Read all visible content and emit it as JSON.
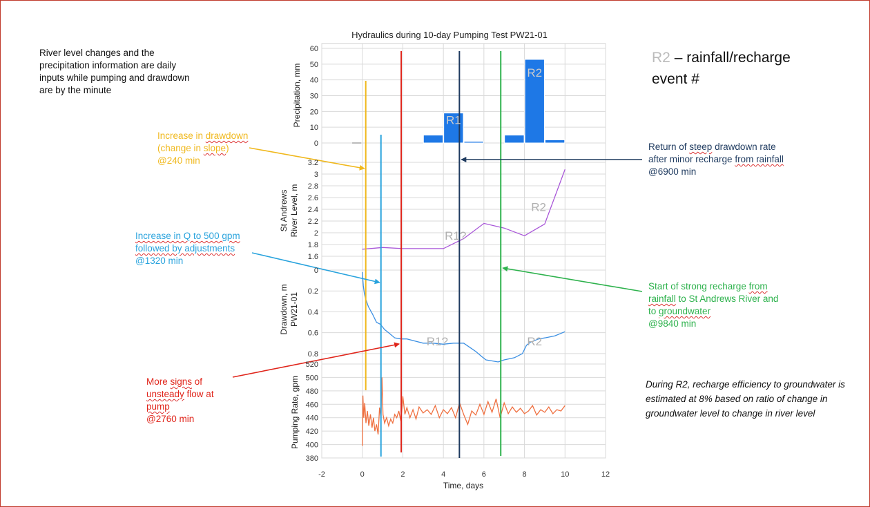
{
  "chart_data": [
    {
      "type": "bar",
      "title": "Hydraulics during 10-day Pumping Test PW21-01",
      "ylabel": "Precipitation, mm",
      "ylim": [
        0,
        60
      ],
      "yticks": [
        "0",
        "10",
        "20",
        "30",
        "40",
        "50",
        "60"
      ],
      "x": [
        4,
        5,
        6,
        8,
        9,
        10
      ],
      "values": [
        5,
        19,
        1,
        5,
        53,
        2
      ],
      "color": "#1e78e6",
      "annotations": [
        "R1",
        "R2"
      ]
    },
    {
      "type": "line",
      "ylabel": "St Andrews\nRiver Level, m",
      "ylim": [
        1.6,
        3.2
      ],
      "yticks": [
        "1.6",
        "1.8",
        "2",
        "2.2",
        "2.4",
        "2.6",
        "2.8",
        "3",
        "3.2"
      ],
      "x": [
        0,
        1,
        2,
        3,
        4,
        5,
        6,
        7,
        8,
        9,
        10
      ],
      "values": [
        1.72,
        1.75,
        1.73,
        1.73,
        1.73,
        1.9,
        2.16,
        2.08,
        1.95,
        2.15,
        3.08
      ],
      "color": "#a855d8",
      "annotations": [
        "R1?",
        "R2"
      ]
    },
    {
      "type": "line",
      "ylabel": "Drawdown, m\nPW21-01",
      "ylim": [
        0,
        0.9
      ],
      "yticks": [
        "0",
        "0.2",
        "0.4",
        "0.6",
        "0.8"
      ],
      "inverted": true,
      "x": [
        0,
        0.05,
        0.1,
        0.17,
        0.3,
        0.5,
        0.7,
        0.9,
        1.1,
        1.3,
        1.6,
        1.9,
        2.2,
        2.6,
        3,
        3.5,
        4,
        4.5,
        5,
        5.3,
        5.6,
        5.9,
        6.1,
        6.4,
        6.7,
        7,
        7.5,
        7.9,
        8.1,
        8.3,
        8.7,
        9,
        9.5,
        10
      ],
      "values": [
        0.02,
        0.15,
        0.22,
        0.28,
        0.35,
        0.42,
        0.5,
        0.52,
        0.57,
        0.6,
        0.65,
        0.66,
        0.66,
        0.68,
        0.7,
        0.7,
        0.71,
        0.7,
        0.7,
        0.74,
        0.78,
        0.83,
        0.86,
        0.87,
        0.88,
        0.86,
        0.84,
        0.8,
        0.72,
        0.69,
        0.66,
        0.65,
        0.63,
        0.59
      ],
      "color": "#3a8fe3",
      "annotations": [
        "R1?",
        "R2"
      ]
    },
    {
      "type": "line",
      "ylabel": "Pumping Rate, gpm",
      "ylim": [
        380,
        520
      ],
      "yticks": [
        "380",
        "400",
        "420",
        "440",
        "460",
        "480",
        "500",
        "520"
      ],
      "xlabel": "Time, days",
      "xlim": [
        -2,
        12
      ],
      "xticks": [
        "-2",
        "0",
        "2",
        "4",
        "6",
        "8",
        "10",
        "12"
      ],
      "x": [
        0,
        0.03,
        0.07,
        0.12,
        0.18,
        0.25,
        0.32,
        0.4,
        0.48,
        0.55,
        0.62,
        0.7,
        0.78,
        0.85,
        0.92,
        0.97,
        1.02,
        1.1,
        1.2,
        1.3,
        1.4,
        1.5,
        1.6,
        1.7,
        1.8,
        1.9,
        2.0,
        2.1,
        2.2,
        2.35,
        2.5,
        2.65,
        2.8,
        3.0,
        3.2,
        3.4,
        3.6,
        3.8,
        4.0,
        4.2,
        4.4,
        4.6,
        4.8,
        5.0,
        5.2,
        5.4,
        5.6,
        5.8,
        6.0,
        6.2,
        6.4,
        6.6,
        6.8,
        7.0,
        7.2,
        7.4,
        7.6,
        7.8,
        8.0,
        8.2,
        8.4,
        8.6,
        8.8,
        9.0,
        9.2,
        9.4,
        9.6,
        9.8,
        10.0
      ],
      "values": [
        398,
        473,
        440,
        462,
        432,
        450,
        428,
        445,
        425,
        440,
        420,
        430,
        415,
        455,
        440,
        500,
        445,
        432,
        440,
        428,
        438,
        432,
        445,
        440,
        450,
        435,
        472,
        445,
        455,
        440,
        452,
        438,
        456,
        447,
        452,
        445,
        458,
        440,
        452,
        446,
        455,
        440,
        462,
        445,
        430,
        450,
        444,
        460,
        445,
        464,
        448,
        468,
        440,
        462,
        446,
        456,
        448,
        454,
        446,
        450,
        458,
        444,
        452,
        448,
        456,
        446,
        452,
        450,
        458
      ],
      "color": "#ef7040"
    }
  ],
  "event_lines": [
    {
      "label": "@240 min",
      "x_days": 0.17,
      "color": "#f0b81c"
    },
    {
      "label": "@1320 min",
      "x_days": 0.92,
      "color": "#29a3dd"
    },
    {
      "label": "@2760 min",
      "x_days": 1.92,
      "color": "#e0251b"
    },
    {
      "label": "@6900 min",
      "x_days": 4.79,
      "color": "#1e3a5f"
    },
    {
      "label": "@9840 min",
      "x_days": 6.83,
      "color": "#2eb24d"
    }
  ],
  "notes": {
    "intro": [
      "River level changes and the",
      "precipitation information are daily",
      "inputs while pumping and drawdown",
      "are by the minute"
    ],
    "yellow": {
      "p1": "Increase in ",
      "w1": "drawdown",
      "p2": "(change in ",
      "w2": "slope",
      "p3": ")",
      "line3": "@240 min",
      "color": "#f0b81c"
    },
    "blue": {
      "w1": "Increase in Q to 500 gpm",
      "w2": "followed by adjustments",
      "line3": "@1320 min",
      "color": "#29a3dd"
    },
    "red": {
      "l1": "More ",
      "w1": "signs",
      "l1b": " of",
      "w2": "unsteady",
      "l2b": " flow at",
      "w3": "pump",
      "line4": "@2760 min",
      "color": "#e0251b"
    },
    "navy": {
      "l1": "Return of ",
      "w1": "steep",
      "l1b": " drawdown rate",
      "l2": "after minor recharge ",
      "w2": "from rainfall",
      "line3": "@6900 min",
      "color": "#1e3a5f"
    },
    "green": {
      "l1": "Start of strong recharge ",
      "w1": "from",
      "w2": "rainfall",
      "l2b": " to St Andrews River and",
      "l3": "to ",
      "w3": "groundwater",
      "line4": "@9840 min",
      "color": "#2eb24d"
    }
  },
  "legend": {
    "r2": "R2",
    "text": " – rainfall/recharge",
    "line2": "event #"
  },
  "italic_note": "During R2, recharge efficiency to groundwater is estimated at 8% based on ratio of change in groundwater level to change in river level"
}
